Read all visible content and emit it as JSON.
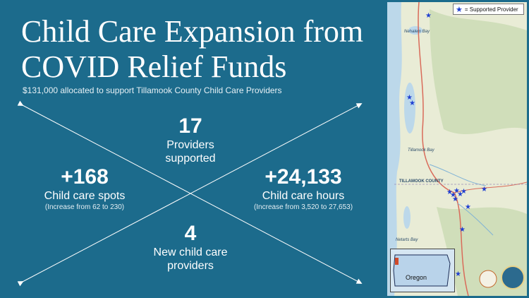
{
  "title": "Child Care Expansion from COVID Relief Funds",
  "subtitle": "$131,000 allocated to support Tillamook County Child Care Providers",
  "stats": {
    "providers": {
      "number": "17",
      "label_line1": "Providers",
      "label_line2": "supported"
    },
    "spots": {
      "number": "+168",
      "label": "Child care spots",
      "note": "(Increase from 62 to 230)"
    },
    "hours": {
      "number": "+24,133",
      "label": "Child care hours",
      "note": "(Increase from 3,520 to 27,653)"
    },
    "new_providers": {
      "number": "4",
      "label_line1": "New child care",
      "label_line2": "providers"
    }
  },
  "map": {
    "legend": "= Supported Provider",
    "inset_label": "Oregon",
    "place_labels": [
      "Nehalem Bay",
      "Tillamook Bay",
      "TILLAMOOK COUNTY",
      "Netarts Bay"
    ]
  },
  "colors": {
    "background": "#1c6b8c",
    "star": "#1f3fd1"
  }
}
